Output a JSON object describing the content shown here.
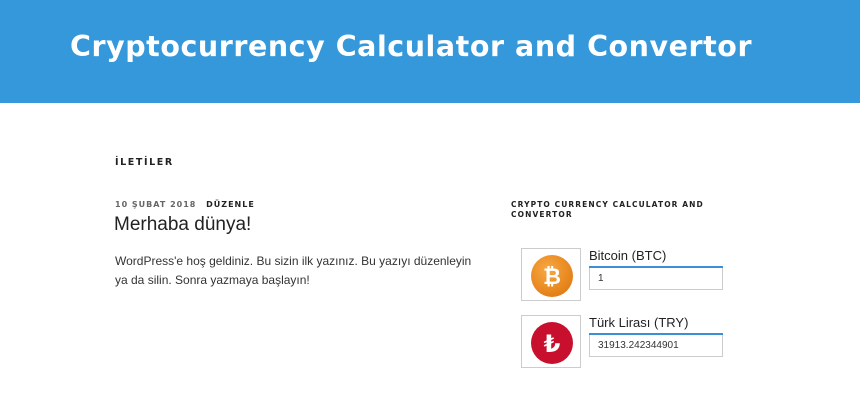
{
  "banner": {
    "title": "Cryptocurrency Calculator and Convertor",
    "background": "#3498db"
  },
  "posts_section": {
    "heading": "İLETİLER"
  },
  "post": {
    "date": "10 ŞUBAT 2018",
    "edit_label": "DÜZENLE",
    "title": "Merhaba dünya!",
    "body": "WordPress'e hoş geldiniz. Bu sizin ilk yazınız. Bu yazıyı düzenleyin ya da silin. Sonra yazmaya başlayın!"
  },
  "widget": {
    "title": "CRYPTO CURRENCY CALCULATOR AND CONVERTOR",
    "from": {
      "icon": "bitcoin-icon",
      "symbol": "₿",
      "label": "Bitcoin (BTC)",
      "value": "1",
      "color": "#e8871e"
    },
    "to": {
      "icon": "turkish-lira-icon",
      "symbol": "₺",
      "label": "Türk Lirası (TRY)",
      "value": "31913.242344901",
      "color": "#c8102e"
    }
  }
}
